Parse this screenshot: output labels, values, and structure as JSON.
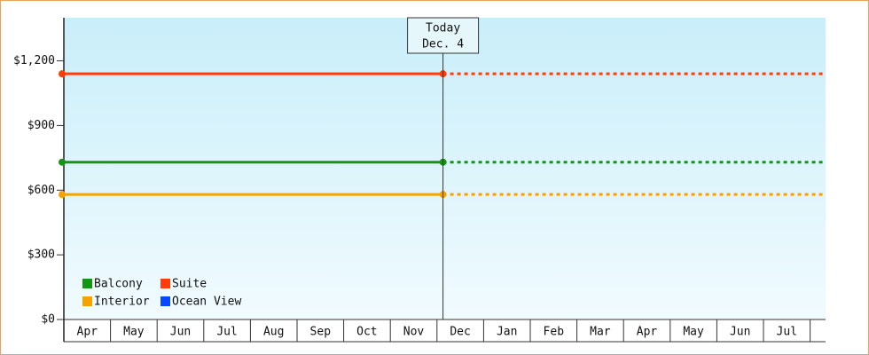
{
  "chart_data": {
    "type": "line",
    "categories": [
      "Apr",
      "May",
      "Jun",
      "Jul",
      "Aug",
      "Sep",
      "Oct",
      "Nov",
      "Dec",
      "Jan",
      "Feb",
      "Mar",
      "Apr",
      "May",
      "Jun",
      "Jul"
    ],
    "today": {
      "label": "Today",
      "date": "Dec. 4"
    },
    "series": [
      {
        "name": "Balcony",
        "color": "#149614",
        "value": 730
      },
      {
        "name": "Suite",
        "color": "#ff3c0a",
        "value": 1140
      },
      {
        "name": "Interior",
        "color": "#f5a300",
        "value": 580
      },
      {
        "name": "Ocean View",
        "color": "#0a46ff",
        "value": null
      }
    ],
    "ylim": [
      0,
      1400
    ],
    "yticks": [
      {
        "value": 0,
        "label": "$0"
      },
      {
        "value": 300,
        "label": "$300"
      },
      {
        "value": 600,
        "label": "$600"
      },
      {
        "value": 900,
        "label": "$900"
      },
      {
        "value": 1200,
        "label": "$1,200"
      }
    ],
    "legend": "lower left"
  }
}
